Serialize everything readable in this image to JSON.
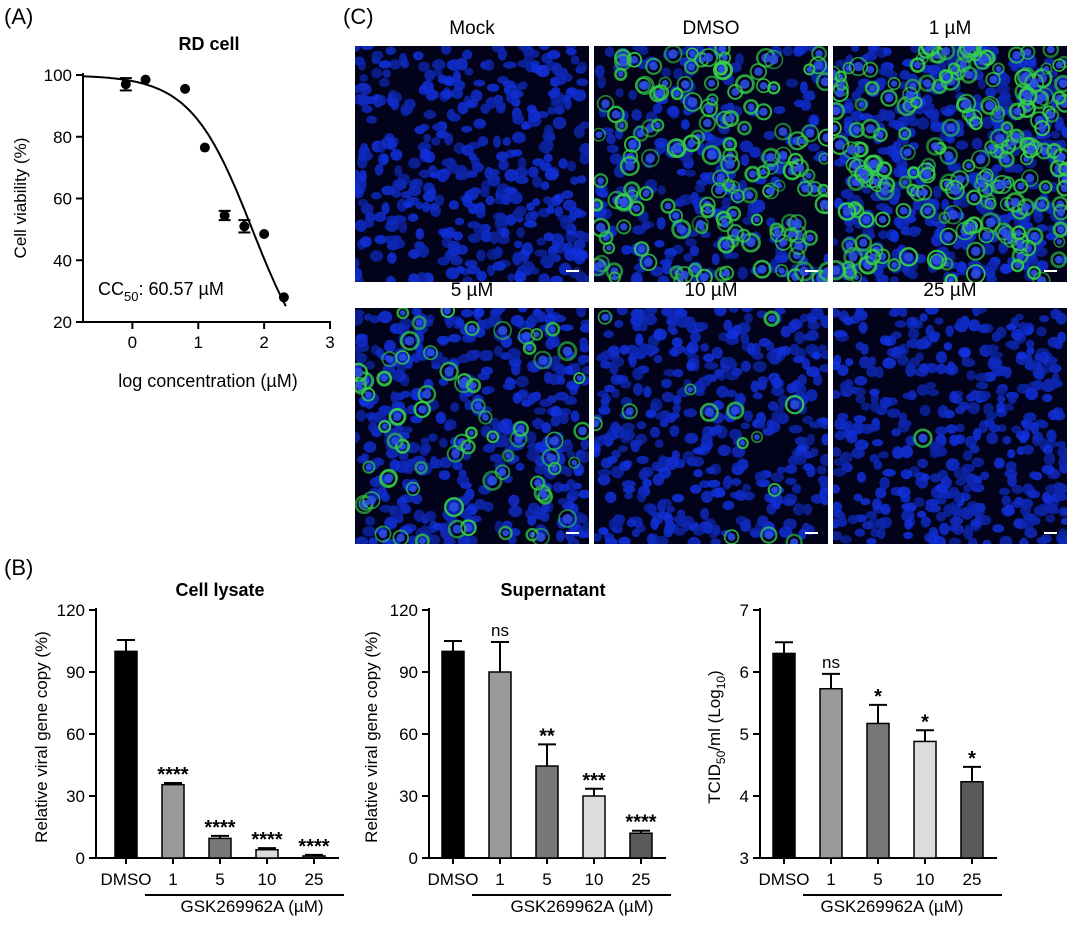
{
  "panels": {
    "a": "(A)",
    "b": "(B)",
    "c": "(C)"
  },
  "panel_a": {
    "title": "RD cell",
    "ylabel": "Cell viability (%)",
    "xlabel": "log concentration (µM)",
    "cc50_prefix": "CC",
    "cc50_sub": "50",
    "cc50_value": ": 60.57 µM"
  },
  "panel_c": {
    "labels": [
      "Mock",
      "DMSO",
      "1 µM",
      "5 µM",
      "10 µM",
      "25 µM"
    ]
  },
  "panel_b": {
    "treatment_label": "GSK269962A (µM)",
    "charts": [
      {
        "title": "Cell lysate",
        "ylabel": "Relative viral gene copy (%)"
      },
      {
        "title": "Supernatant",
        "ylabel": "Relative viral gene copy (%)"
      },
      {
        "title": "",
        "ylabel_pre": "TCID",
        "ylabel_sub1": "50",
        "ylabel_mid": "/ml (Log",
        "ylabel_sub2": "10",
        "ylabel_post": ")"
      }
    ]
  },
  "colors": {
    "dmso": "#000000",
    "c1": "#9a9a9a",
    "c5": "#777777",
    "c10": "#dcdcdc",
    "c25": "#595959",
    "nuclei": "#1f2fd8",
    "virus": "#35d04a"
  },
  "chart_data": [
    {
      "type": "scatter",
      "title": "RD cell",
      "xlabel": "log concentration (µM)",
      "ylabel": "Cell viability (%)",
      "xlim": [
        -0.75,
        3
      ],
      "ylim": [
        20,
        100
      ],
      "xticks": [
        "0",
        "1",
        "2",
        "3"
      ],
      "yticks": [
        "20",
        "40",
        "60",
        "80",
        "100"
      ],
      "points": [
        {
          "x": -0.1,
          "y": 97,
          "err": 2
        },
        {
          "x": 0.2,
          "y": 98.5,
          "err": 0
        },
        {
          "x": 0.8,
          "y": 95.5,
          "err": 0
        },
        {
          "x": 1.1,
          "y": 76.5,
          "err": 0
        },
        {
          "x": 1.4,
          "y": 54.5,
          "err": 1.5
        },
        {
          "x": 1.7,
          "y": 51,
          "err": 2
        },
        {
          "x": 2.0,
          "y": 48.5,
          "err": 0
        },
        {
          "x": 2.3,
          "y": 28,
          "err": 0
        }
      ],
      "fit": "dose-response",
      "annotation": "CC50: 60.57 µM"
    },
    {
      "type": "bar",
      "title": "Cell lysate",
      "ylabel": "Relative viral gene copy (%)",
      "xlabel": "GSK269962A (µM)",
      "categories": [
        "DMSO",
        "1",
        "5",
        "10",
        "25"
      ],
      "values": [
        100,
        35.5,
        9.5,
        4,
        1
      ],
      "errors": [
        5.5,
        0.8,
        1.2,
        0.8,
        0.5
      ],
      "significance": [
        "",
        "****",
        "****",
        "****",
        "****"
      ],
      "ylim": [
        0,
        120
      ],
      "yticks": [
        "0",
        "30",
        "60",
        "90",
        "120"
      ]
    },
    {
      "type": "bar",
      "title": "Supernatant",
      "ylabel": "Relative viral gene copy (%)",
      "xlabel": "GSK269962A (µM)",
      "categories": [
        "DMSO",
        "1",
        "5",
        "10",
        "25"
      ],
      "values": [
        100,
        90,
        44.5,
        30,
        12
      ],
      "errors": [
        5,
        14.5,
        10.5,
        3.5,
        1.2
      ],
      "significance": [
        "",
        "ns",
        "**",
        "***",
        "****"
      ],
      "ylim": [
        0,
        120
      ],
      "yticks": [
        "0",
        "30",
        "60",
        "90",
        "120"
      ]
    },
    {
      "type": "bar",
      "title": "",
      "ylabel": "TCID50/ml (Log10)",
      "xlabel": "GSK269962A (µM)",
      "categories": [
        "DMSO",
        "1",
        "5",
        "10",
        "25"
      ],
      "values": [
        6.3,
        5.73,
        5.17,
        4.88,
        4.23
      ],
      "errors": [
        0.18,
        0.24,
        0.3,
        0.18,
        0.24
      ],
      "significance": [
        "",
        "ns",
        "*",
        "*",
        "*"
      ],
      "ylim": [
        3,
        7
      ],
      "yticks": [
        "3",
        "4",
        "5",
        "6",
        "7"
      ]
    }
  ]
}
